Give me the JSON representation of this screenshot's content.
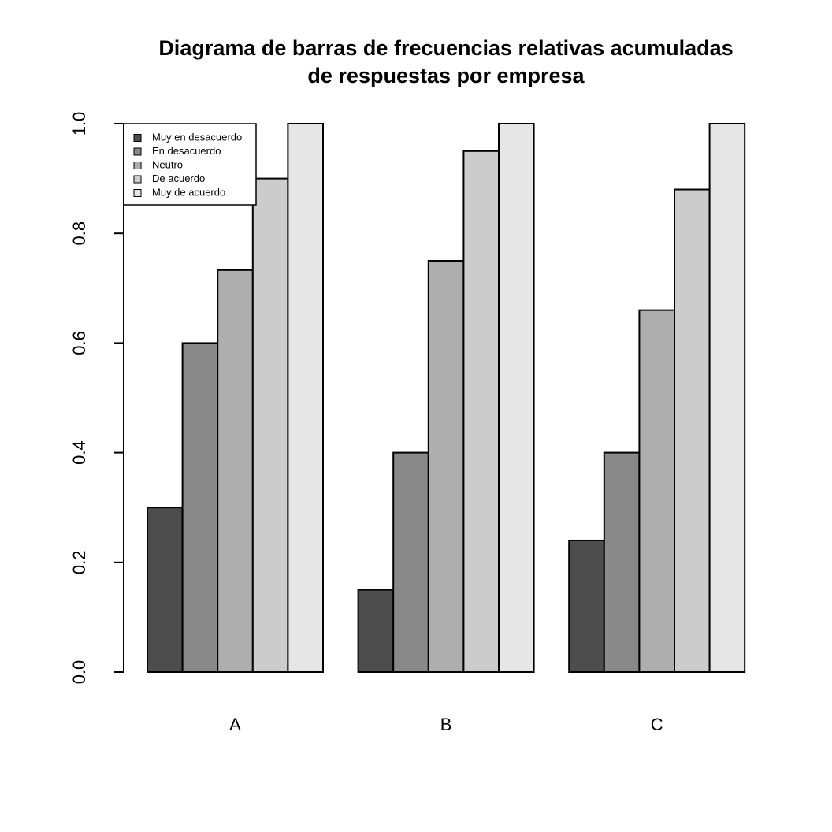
{
  "chart_data": {
    "type": "bar",
    "title": [
      "Diagrama de barras de frecuencias relativas acumuladas",
      "de respuestas por empresa"
    ],
    "categories": [
      "A",
      "B",
      "C"
    ],
    "series": [
      {
        "name": "Muy en desacuerdo",
        "color": "#4d4d4d",
        "values": [
          0.3,
          0.15,
          0.24
        ]
      },
      {
        "name": "En desacuerdo",
        "color": "#898989",
        "values": [
          0.6,
          0.4,
          0.4
        ]
      },
      {
        "name": "Neutro",
        "color": "#aeaeae",
        "values": [
          0.733,
          0.75,
          0.66
        ]
      },
      {
        "name": "De acuerdo",
        "color": "#cccccc",
        "values": [
          0.9,
          0.95,
          0.88
        ]
      },
      {
        "name": "Muy de acuerdo",
        "color": "#e6e6e6",
        "values": [
          1,
          1,
          1
        ]
      }
    ],
    "ylim": [
      0,
      1
    ],
    "yticks": [
      {
        "value": 0,
        "label": "0.0"
      },
      0.2,
      0.4,
      0.6,
      0.8,
      {
        "value": 1,
        "label": "1.0"
      }
    ],
    "legend": "top-left"
  }
}
